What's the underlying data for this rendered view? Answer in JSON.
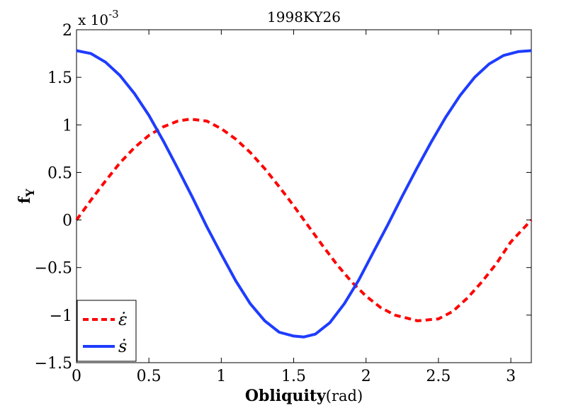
{
  "chart_data": {
    "type": "line",
    "title": "1998KY26",
    "xlabel_bold": "Obliquity",
    "xlabel_unit": "(rad)",
    "ylabel_main": "f",
    "ylabel_sub": "Y",
    "y_exponent_prefix": "x 10",
    "y_exponent_power": "-3",
    "xlim": [
      0,
      3.1416
    ],
    "ylim": [
      -1.5,
      2
    ],
    "xticks": [
      0,
      0.5,
      1,
      1.5,
      2,
      2.5,
      3
    ],
    "xtick_labels": [
      "0",
      "0.5",
      "1",
      "1.5",
      "2",
      "2.5",
      "3"
    ],
    "yticks": [
      -1.5,
      -1,
      -0.5,
      0,
      0.5,
      1,
      1.5,
      2
    ],
    "ytick_labels": [
      "−1.5",
      "−1",
      "−0.5",
      "0",
      "0.5",
      "1",
      "1.5",
      "2"
    ],
    "grid": false,
    "legend_position": "bottom-left",
    "series": [
      {
        "name": "ε̇",
        "color": "#ff0000",
        "style": "dashed",
        "x": [
          0,
          0.1,
          0.2,
          0.3,
          0.4,
          0.5,
          0.6,
          0.7,
          0.785,
          0.9,
          1.0,
          1.1,
          1.2,
          1.3,
          1.4,
          1.5,
          1.571,
          1.7,
          1.8,
          1.9,
          2.0,
          2.1,
          2.2,
          2.356,
          2.5,
          2.6,
          2.7,
          2.8,
          2.9,
          3.0,
          3.1416
        ],
        "y": [
          0,
          0.21,
          0.41,
          0.6,
          0.76,
          0.89,
          0.98,
          1.04,
          1.06,
          1.04,
          0.96,
          0.85,
          0.71,
          0.54,
          0.35,
          0.15,
          0.0,
          -0.27,
          -0.47,
          -0.65,
          -0.8,
          -0.92,
          -1.0,
          -1.06,
          -1.04,
          -0.96,
          -0.82,
          -0.65,
          -0.46,
          -0.23,
          0
        ]
      },
      {
        "name": "ṡ",
        "color": "#1e3cff",
        "style": "solid",
        "x": [
          0,
          0.1,
          0.2,
          0.3,
          0.4,
          0.5,
          0.6,
          0.7,
          0.8,
          0.9,
          1.0,
          1.1,
          1.2,
          1.3,
          1.4,
          1.5,
          1.571,
          1.65,
          1.75,
          1.85,
          1.95,
          2.05,
          2.15,
          2.25,
          2.35,
          2.45,
          2.55,
          2.65,
          2.75,
          2.85,
          2.95,
          3.05,
          3.1416
        ],
        "y": [
          1.78,
          1.75,
          1.66,
          1.52,
          1.33,
          1.1,
          0.83,
          0.54,
          0.24,
          -0.07,
          -0.36,
          -0.64,
          -0.88,
          -1.06,
          -1.18,
          -1.22,
          -1.23,
          -1.2,
          -1.08,
          -0.88,
          -0.63,
          -0.34,
          -0.05,
          0.25,
          0.54,
          0.82,
          1.08,
          1.31,
          1.5,
          1.64,
          1.73,
          1.77,
          1.78
        ]
      }
    ]
  }
}
